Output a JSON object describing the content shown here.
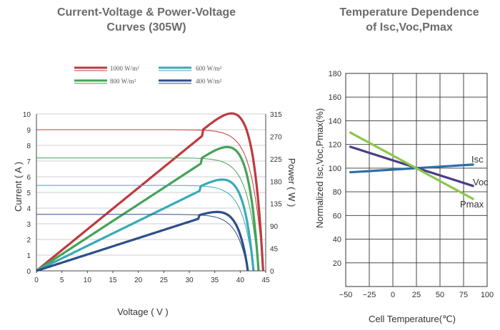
{
  "chart_data": [
    {
      "type": "line",
      "title_line1": "Current-Voltage & Power-Voltage",
      "title_line2": "Curves (305W)",
      "xlabel": "Voltage ( V )",
      "ylabel": "Current ( A )",
      "y2label": "Power ( W )",
      "xlim": [
        0,
        45
      ],
      "ylim": [
        0,
        10
      ],
      "y2lim": [
        0,
        315
      ],
      "x_ticks": [
        "0",
        "5",
        "10",
        "15",
        "20",
        "25",
        "30",
        "35",
        "40",
        "45"
      ],
      "y_ticks": [
        "0",
        "1",
        "2",
        "3",
        "4",
        "5",
        "6",
        "7",
        "8",
        "9",
        "10"
      ],
      "y2_ticks": [
        "0",
        "45",
        "90",
        "135",
        "180",
        "225",
        "270",
        "315"
      ],
      "grid": "horizontal",
      "legend_position": "top",
      "series": [
        {
          "name": "1000 W/m²",
          "color": "#c0393f",
          "isc": 9.0,
          "voc": 44.5,
          "pmax": 305,
          "vmp": 35.5
        },
        {
          "name": "800 W/m²",
          "color": "#44a357",
          "isc": 7.2,
          "voc": 43.6,
          "pmax": 243,
          "vmp": 35.3
        },
        {
          "name": "600 W/m²",
          "color": "#3aa9b8",
          "isc": 5.45,
          "voc": 42.6,
          "pmax": 181,
          "vmp": 35.0
        },
        {
          "name": "400 W/m²",
          "color": "#2e4f8a",
          "isc": 3.6,
          "voc": 41.5,
          "pmax": 118,
          "vmp": 34.8
        }
      ]
    },
    {
      "type": "line",
      "title_line1": "Temperature Dependence",
      "title_line2": "of Isc,Voc,Pmax",
      "xlabel": "Cell Temperature(℃)",
      "ylabel": "Normalized Isc,Voc,Pmax(%)",
      "xlim": [
        -50,
        100
      ],
      "ylim": [
        0,
        180
      ],
      "x_ticks": [
        "−50",
        "−25",
        "0",
        "25",
        "50",
        "75",
        "100"
      ],
      "y_ticks": [
        "20",
        "40",
        "60",
        "80",
        "100",
        "120",
        "140",
        "160",
        "180"
      ],
      "grid": "both",
      "series": [
        {
          "name": "Isc",
          "color": "#2b6fa8",
          "x": [
            -45,
            85
          ],
          "y": [
            96.5,
            103
          ]
        },
        {
          "name": "Voc",
          "color": "#4a3d87",
          "x": [
            -45,
            85
          ],
          "y": [
            118,
            85
          ]
        },
        {
          "name": "Pmax",
          "color": "#8cc84b",
          "x": [
            -45,
            85
          ],
          "y": [
            130,
            74
          ]
        }
      ]
    }
  ]
}
